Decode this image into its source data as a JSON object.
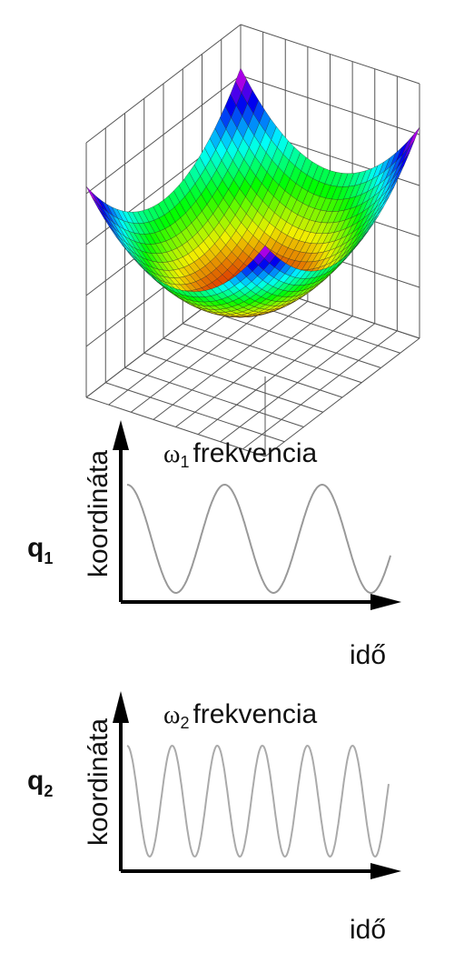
{
  "panels": [
    {
      "coordinate": "q",
      "index": "1",
      "y_label": "koordináta",
      "freq_symbol": "ω",
      "freq_index": "1",
      "freq_label": "frekvencia",
      "x_label": "idő"
    },
    {
      "coordinate": "q",
      "index": "2",
      "y_label": "koordináta",
      "freq_symbol": "ω",
      "freq_index": "2",
      "freq_label": "frekvencia",
      "x_label": "idő"
    }
  ]
}
